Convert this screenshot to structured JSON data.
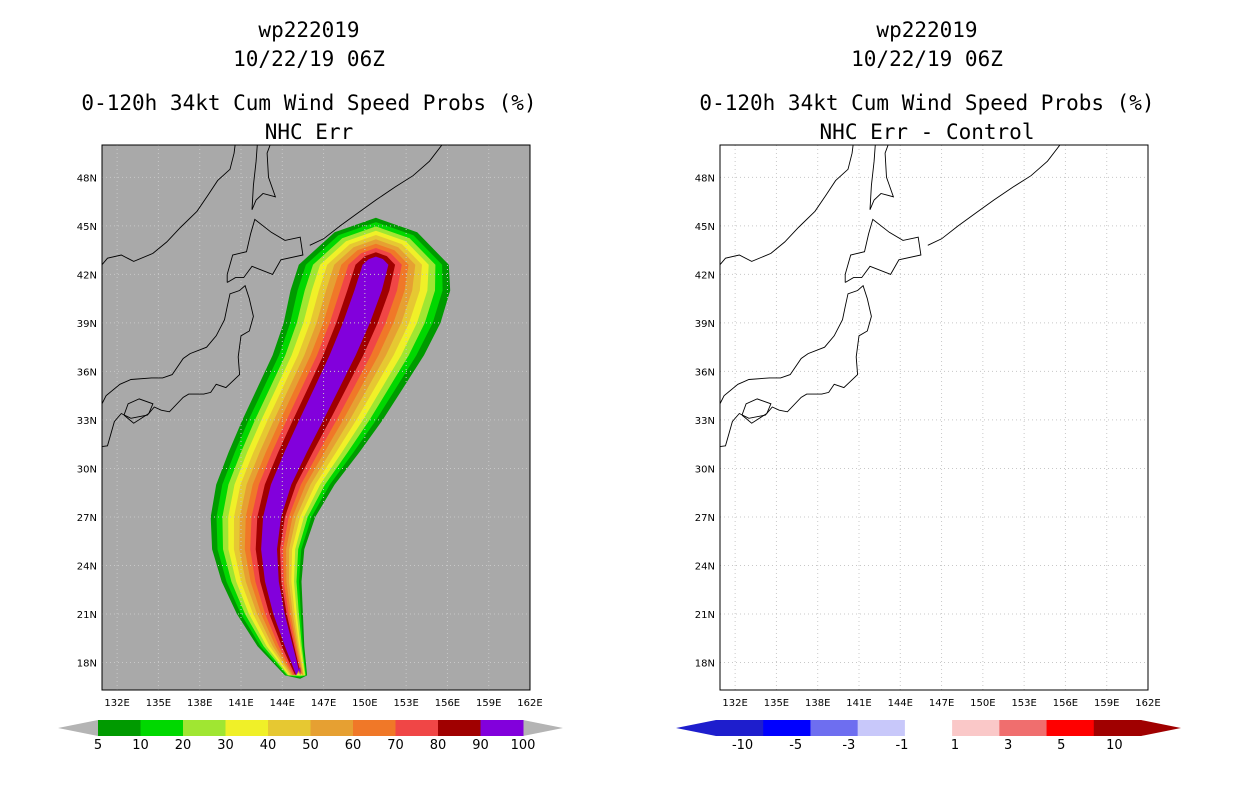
{
  "panels": [
    {
      "title_line1": "wp222019",
      "title_line2": "10/22/19 06Z",
      "title_line3": "0-120h 34kt Cum Wind Speed Probs (%)",
      "title_line4": "NHC Err",
      "background_color": "#a9a9a9",
      "colorbar": {
        "labels": [
          "5",
          "10",
          "20",
          "30",
          "40",
          "50",
          "60",
          "70",
          "80",
          "90",
          "100"
        ],
        "colors": [
          "#009a00",
          "#00d800",
          "#a0e632",
          "#f0f028",
          "#e6c832",
          "#e6a032",
          "#f07828",
          "#f04646",
          "#a00000",
          "#8200dc"
        ],
        "low_arrow_color": "#b4b4b4",
        "high_arrow_color": "#b4b4b4"
      }
    },
    {
      "title_line1": "wp222019",
      "title_line2": "10/22/19 06Z",
      "title_line3": "0-120h 34kt Cum Wind Speed Probs (%)",
      "title_line4": "NHC Err - Control",
      "background_color": "#ffffff",
      "colorbar": {
        "labels": [
          "-10",
          "-5",
          "-3",
          "-1",
          "1",
          "3",
          "5",
          "10"
        ],
        "colors": [
          "#1e1ecd",
          "#0000ff",
          "#6e6ef0",
          "#c8c8fa",
          "#ffffff",
          "#fac8c8",
          "#f06e6e",
          "#ff0000",
          "#a00000"
        ],
        "low_arrow_color": "#1e1ecd",
        "high_arrow_color": "#a00000"
      }
    }
  ],
  "map": {
    "lon_labels": [
      "132E",
      "135E",
      "138E",
      "141E",
      "144E",
      "147E",
      "150E",
      "153E",
      "156E",
      "159E",
      "162E"
    ],
    "lat_labels": [
      "48N",
      "45N",
      "42N",
      "39N",
      "36N",
      "33N",
      "30N",
      "27N",
      "24N",
      "21N",
      "18N"
    ],
    "lon_values": [
      132,
      135,
      138,
      141,
      144,
      147,
      150,
      153,
      156,
      159,
      162
    ],
    "lat_values": [
      48,
      45,
      42,
      39,
      36,
      33,
      30,
      27,
      24,
      21,
      18
    ],
    "lon_range": [
      130.9,
      162.0
    ],
    "lat_range": [
      16.3,
      50.0
    ]
  },
  "probability_contours": [
    {
      "level": 5,
      "color": "#009a00"
    },
    {
      "level": 10,
      "color": "#00d800"
    },
    {
      "level": 20,
      "color": "#a0e632"
    },
    {
      "level": 30,
      "color": "#f0f028"
    },
    {
      "level": 40,
      "color": "#e6c832"
    },
    {
      "level": 50,
      "color": "#e6a032"
    },
    {
      "level": 60,
      "color": "#f07828"
    },
    {
      "level": 70,
      "color": "#f04646"
    },
    {
      "level": 80,
      "color": "#a00000"
    },
    {
      "level": 90,
      "color": "#8200dc"
    }
  ]
}
